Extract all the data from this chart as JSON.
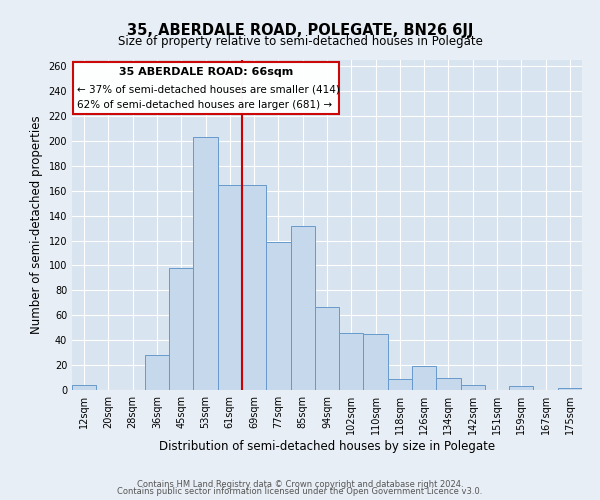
{
  "title": "35, ABERDALE ROAD, POLEGATE, BN26 6JJ",
  "subtitle": "Size of property relative to semi-detached houses in Polegate",
  "xlabel": "Distribution of semi-detached houses by size in Polegate",
  "ylabel": "Number of semi-detached properties",
  "categories": [
    "12sqm",
    "20sqm",
    "28sqm",
    "36sqm",
    "45sqm",
    "53sqm",
    "61sqm",
    "69sqm",
    "77sqm",
    "85sqm",
    "94sqm",
    "102sqm",
    "110sqm",
    "118sqm",
    "126sqm",
    "134sqm",
    "142sqm",
    "151sqm",
    "159sqm",
    "167sqm",
    "175sqm"
  ],
  "values": [
    4,
    0,
    0,
    28,
    98,
    203,
    165,
    165,
    119,
    132,
    67,
    46,
    45,
    9,
    19,
    10,
    4,
    0,
    3,
    0,
    2
  ],
  "bar_color": "#c5d8ec",
  "bar_edge_color": "#6699cc",
  "vline_color": "#cc0000",
  "annotation_title": "35 ABERDALE ROAD: 66sqm",
  "annotation_line1": "← 37% of semi-detached houses are smaller (414)",
  "annotation_line2": "62% of semi-detached houses are larger (681) →",
  "box_edge_color": "#cc0000",
  "ylim": [
    0,
    265
  ],
  "yticks": [
    0,
    20,
    40,
    60,
    80,
    100,
    120,
    140,
    160,
    180,
    200,
    220,
    240,
    260
  ],
  "footer1": "Contains HM Land Registry data © Crown copyright and database right 2024.",
  "footer2": "Contains public sector information licensed under the Open Government Licence v3.0.",
  "bg_color": "#e8eef5",
  "plot_bg_color": "#d8e4f0",
  "grid_color": "#ffffff",
  "title_fontsize": 10.5,
  "subtitle_fontsize": 8.5,
  "axis_label_fontsize": 8.5,
  "tick_fontsize": 7,
  "annotation_title_fontsize": 8,
  "annotation_body_fontsize": 7.5,
  "footer_fontsize": 6
}
